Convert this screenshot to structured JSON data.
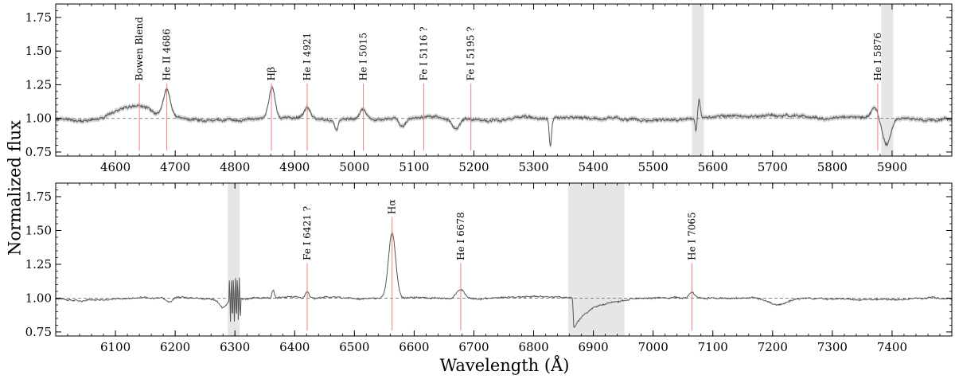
{
  "chart_data": {
    "type": "line",
    "xlabel": "Wavelength (Å)",
    "ylabel": "Normalized flux",
    "colors": {
      "spectrum": "#555555",
      "error_band": "#bdbdbd",
      "line_marker": "#f08080",
      "telluric_band": "#e6e6e6",
      "continuum": "#777777"
    },
    "grid": false,
    "panels": [
      {
        "xlim": [
          4500,
          6000
        ],
        "ylim": [
          0.72,
          1.85
        ],
        "xticks": [
          4600,
          4700,
          4800,
          4900,
          5000,
          5100,
          5200,
          5300,
          5400,
          5500,
          5600,
          5700,
          5800,
          5900
        ],
        "yticks": [
          "0.75",
          "1.00",
          "1.25",
          "1.50",
          "1.75"
        ],
        "continuum": 1.0,
        "masked_regions": [
          [
            5565,
            5585
          ],
          [
            5882,
            5902
          ]
        ],
        "lines": [
          {
            "label": "Bowen Blend",
            "wavelength": 4640
          },
          {
            "label": "He II 4686",
            "wavelength": 4686
          },
          {
            "label": "Hβ",
            "wavelength": 4861
          },
          {
            "label": "He I 4921",
            "wavelength": 4921
          },
          {
            "label": "He I 5015",
            "wavelength": 5015
          },
          {
            "label": "Fe I 5116 ?",
            "wavelength": 5116
          },
          {
            "label": "Fe I 5195 ?",
            "wavelength": 5195
          },
          {
            "label": "He I 5876",
            "wavelength": 5876
          }
        ],
        "features": [
          {
            "wavelength": 4630,
            "amplitude": 0.12,
            "width": 30
          },
          {
            "wavelength": 4686,
            "amplitude": 0.2,
            "width": 6
          },
          {
            "wavelength": 4862,
            "amplitude": 0.23,
            "width": 5
          },
          {
            "wavelength": 4921,
            "amplitude": 0.08,
            "width": 5
          },
          {
            "wavelength": 5015,
            "amplitude": 0.08,
            "width": 6
          },
          {
            "wavelength": 4970,
            "amplitude": -0.08,
            "width": 3
          },
          {
            "wavelength": 5080,
            "amplitude": -0.06,
            "width": 5
          },
          {
            "wavelength": 5170,
            "amplitude": -0.07,
            "width": 6
          },
          {
            "wavelength": 5328,
            "amplitude": -0.2,
            "width": 2
          },
          {
            "wavelength": 5577,
            "amplitude": 0.14,
            "width": 2
          },
          {
            "wavelength": 5572,
            "amplitude": -0.1,
            "width": 1.5
          },
          {
            "wavelength": 5871,
            "amplitude": 0.08,
            "width": 5
          },
          {
            "wavelength": 5891,
            "amplitude": -0.2,
            "width": 7
          }
        ],
        "noise": 0.02
      },
      {
        "xlim": [
          6000,
          7500
        ],
        "ylim": [
          0.72,
          1.85
        ],
        "xticks": [
          6100,
          6200,
          6300,
          6400,
          6500,
          6600,
          6700,
          6800,
          6900,
          7000,
          7100,
          7200,
          7300,
          7400
        ],
        "yticks": [
          "0.75",
          "1.00",
          "1.25",
          "1.50",
          "1.75"
        ],
        "continuum": 1.0,
        "masked_regions": [
          [
            6288,
            6308
          ],
          [
            6858,
            6952
          ]
        ],
        "lines": [
          {
            "label": "Fe I 6421 ?",
            "wavelength": 6421
          },
          {
            "label": "Hα",
            "wavelength": 6563
          },
          {
            "label": "He I 6678",
            "wavelength": 6678
          },
          {
            "label": "He I 7065",
            "wavelength": 7065
          }
        ],
        "features": [
          {
            "wavelength": 6563,
            "amplitude": 0.48,
            "width": 6
          },
          {
            "wavelength": 6421,
            "amplitude": 0.05,
            "width": 3
          },
          {
            "wavelength": 6678,
            "amplitude": 0.07,
            "width": 7
          },
          {
            "wavelength": 7065,
            "amplitude": 0.04,
            "width": 5
          },
          {
            "wavelength": 6364,
            "amplitude": 0.06,
            "width": 2
          },
          {
            "wavelength": 6280,
            "amplitude": -0.06,
            "width": 6
          },
          {
            "wavelength": 6190,
            "amplitude": -0.03,
            "width": 5
          },
          {
            "wavelength": 7210,
            "amplitude": -0.05,
            "width": 18
          }
        ],
        "oscillations": [
          {
            "from": 6290,
            "to": 6310,
            "amplitude": 0.16
          }
        ],
        "absorption_dip": {
          "start": 6865,
          "end": 6960,
          "depth": 0.25
        },
        "noise": 0.012
      }
    ]
  }
}
